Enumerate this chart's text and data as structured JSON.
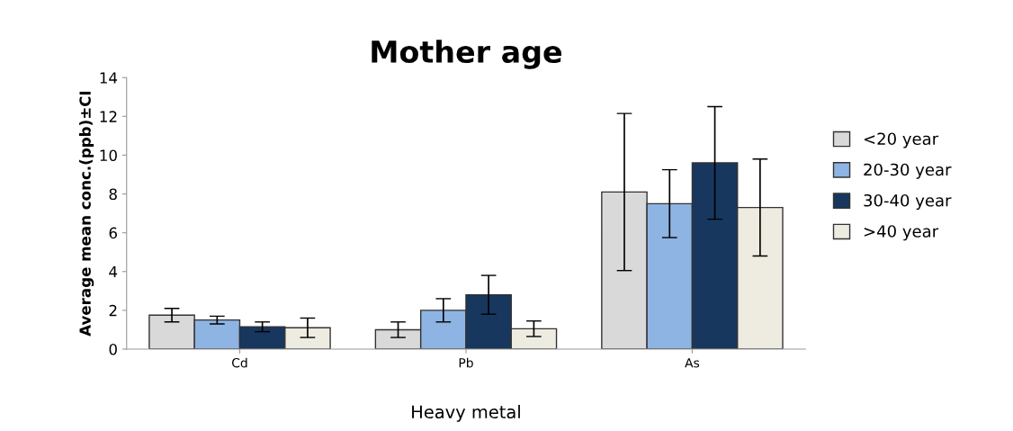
{
  "chart_data": {
    "type": "bar",
    "title": "Mother age",
    "xlabel": "Heavy metal",
    "ylabel": "Average mean conc.(ppb)±CI",
    "categories": [
      "Cd",
      "Pb",
      "As"
    ],
    "series": [
      {
        "name": "<20 year",
        "color": "#d9d9d9",
        "values": [
          1.75,
          1.0,
          8.1
        ],
        "errors": [
          0.35,
          0.4,
          4.05
        ]
      },
      {
        "name": "20-30 year",
        "color": "#8eb4e3",
        "values": [
          1.5,
          2.0,
          7.5
        ],
        "errors": [
          0.2,
          0.6,
          1.75
        ]
      },
      {
        "name": "30-40 year",
        "color": "#17375e",
        "values": [
          1.15,
          2.8,
          9.6
        ],
        "errors": [
          0.25,
          1.0,
          2.9
        ]
      },
      {
        "name": ">40 year",
        "color": "#eeece1",
        "values": [
          1.1,
          1.05,
          7.3
        ],
        "errors": [
          0.5,
          0.4,
          2.5
        ]
      }
    ],
    "ylim": [
      0,
      14
    ],
    "yticks": [
      0,
      2,
      4,
      6,
      8,
      10,
      12,
      14
    ],
    "grid": false,
    "legend": "right"
  }
}
